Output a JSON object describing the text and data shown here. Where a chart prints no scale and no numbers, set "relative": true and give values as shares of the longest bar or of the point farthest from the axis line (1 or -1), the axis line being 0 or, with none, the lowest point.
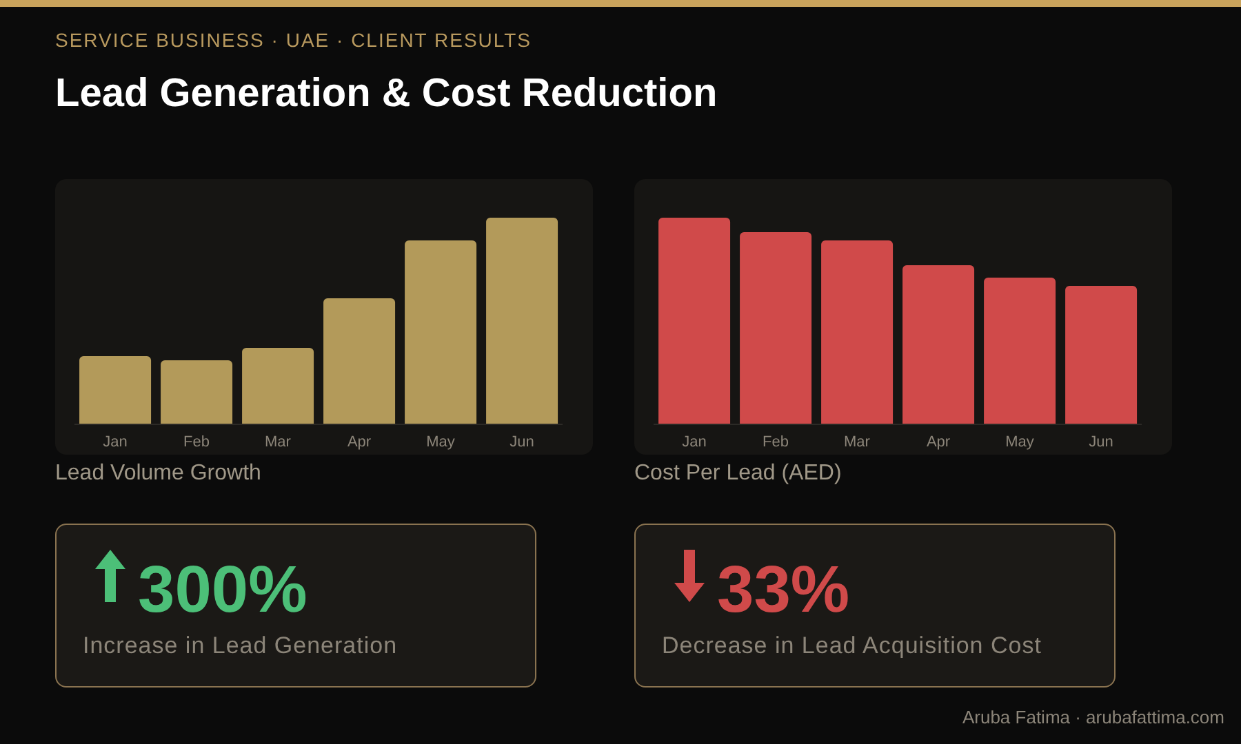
{
  "chart_data": [
    {
      "type": "other",
      "subtitle": "SERVICE BUSINESS · UAE · CLIENT RESULTS",
      "title": "Lead Generation & Cost Reduction",
      "annotations": [
        "Aruba Fatima · arubafattima.com"
      ]
    },
    {
      "type": "bar",
      "title": "Lead Volume Growth",
      "relative": true,
      "categories": [
        "Jan",
        "Feb",
        "Mar",
        "Apr",
        "May",
        "Jun"
      ],
      "values": [
        0.33,
        0.31,
        0.37,
        0.61,
        0.89,
        1
      ],
      "color": "#b39a5a"
    },
    {
      "type": "bar",
      "title": "Cost Per Lead (AED)",
      "relative": true,
      "categories": [
        "Jan",
        "Feb",
        "Mar",
        "Apr",
        "May",
        "Jun"
      ],
      "values": [
        1,
        0.93,
        0.89,
        0.77,
        0.71,
        0.67
      ],
      "color": "#d04a4a"
    },
    {
      "type": "other",
      "title": "300%",
      "subtitle": "Increase in Lead Generation",
      "color": "#4cbf78"
    },
    {
      "type": "other",
      "title": "33%",
      "subtitle": "Decrease in Lead Acquisition Cost",
      "color": "#d04a4a"
    }
  ]
}
